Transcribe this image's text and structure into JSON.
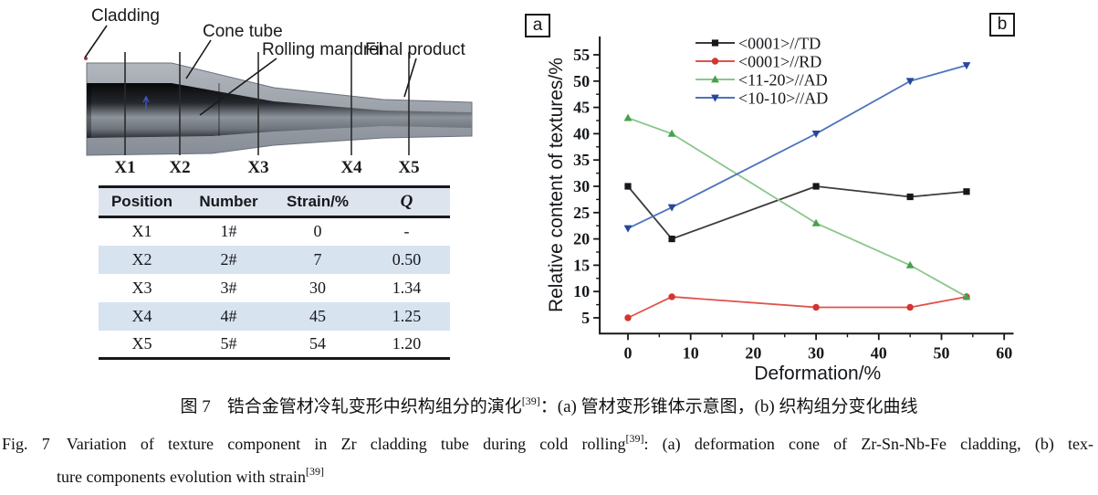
{
  "panel_a": {
    "label": "a",
    "annotations": {
      "cladding": "Cladding",
      "cone_tube": "Cone tube",
      "rolling_mandrel": "Rolling mandrel",
      "final_product": "Final product"
    },
    "position_labels": [
      "X1",
      "X2",
      "X3",
      "X4",
      "X5"
    ],
    "table": {
      "headers": [
        "Position",
        "Number",
        "Strain/%",
        "Q"
      ],
      "rows": [
        [
          "X1",
          "1#",
          "0",
          "-"
        ],
        [
          "X2",
          "2#",
          "7",
          "0.50"
        ],
        [
          "X3",
          "3#",
          "30",
          "1.34"
        ],
        [
          "X4",
          "4#",
          "45",
          "1.25"
        ],
        [
          "X5",
          "5#",
          "54",
          "1.20"
        ]
      ],
      "header_bg": "#dee4ed",
      "alt_row_bg": "#d8e3f0"
    }
  },
  "panel_b": {
    "label": "b"
  },
  "chart_data": {
    "type": "line",
    "title": "",
    "xlabel": "Deformation/%",
    "ylabel": "Relative content of textures/%",
    "x": [
      0,
      7,
      30,
      45,
      54
    ],
    "series": [
      {
        "name": "<0001>//TD",
        "marker": "square",
        "color": "#15181c",
        "line_color": "#3c3c3c",
        "values": [
          30,
          20,
          30,
          28,
          29
        ]
      },
      {
        "name": "<0001>//RD",
        "marker": "circle",
        "color": "#d43430",
        "line_color": "#e0534d",
        "values": [
          5,
          9,
          7,
          7,
          9
        ]
      },
      {
        "name": "<11-20>//AD",
        "marker": "triangle-up",
        "color": "#44a24a",
        "line_color": "#8ac78b",
        "values": [
          43,
          40,
          23,
          15,
          9
        ]
      },
      {
        "name": "<10-10>//AD",
        "marker": "triangle-down",
        "color": "#27479c",
        "line_color": "#4d74bd",
        "values": [
          22,
          26,
          40,
          50,
          53
        ]
      }
    ],
    "x_ticks": [
      0,
      10,
      20,
      30,
      40,
      50,
      60
    ],
    "y_ticks": [
      5,
      10,
      15,
      20,
      25,
      30,
      35,
      40,
      45,
      50,
      55
    ],
    "xlim": [
      -4.5,
      61.5
    ],
    "ylim": [
      2,
      58.5
    ],
    "grid": false,
    "legend_position": "top-center-inside",
    "axis_color": "#15181c"
  },
  "caption_zh": {
    "prefix": "图 7",
    "main": "锆合金管材冷轧变形中织构组分的演化",
    "ref": "[39]",
    "rest": "：(a) 管材变形锥体示意图，(b) 织构组分变化曲线"
  },
  "caption_en": {
    "label": "Fig. 7",
    "part1": "Variation of texture component in Zr cladding tube during cold rolling",
    "ref1": "[39]",
    "part2": ": (a) deformation cone of Zr-Sn-Nb-Fe cladding, (b) tex-",
    "part3": "ture components evolution with strain",
    "ref2": "[39]"
  }
}
